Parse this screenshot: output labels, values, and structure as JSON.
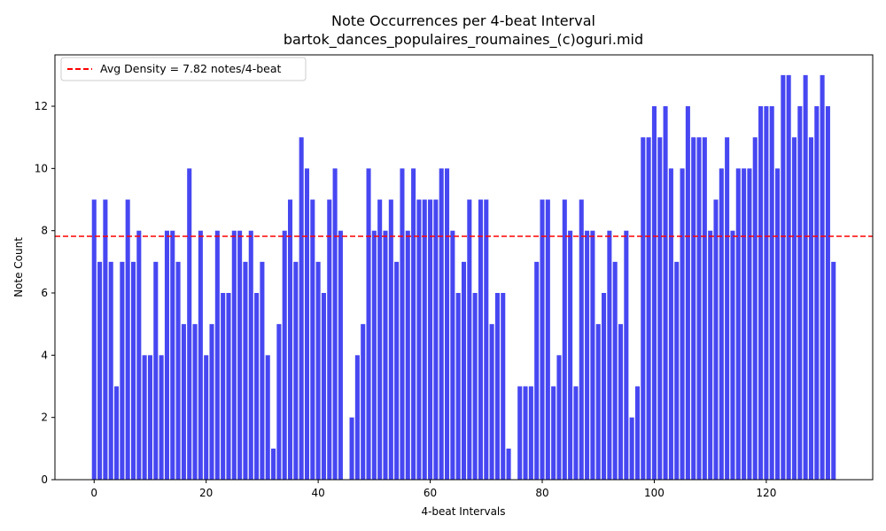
{
  "chart_data": {
    "type": "bar",
    "title": "Note Occurrences per 4-beat Interval",
    "subtitle": "bartok_dances_populaires_roumaines_(c)oguri.mid",
    "xlabel": "4-beat Intervals",
    "ylabel": "Note Count",
    "xlim": [
      -7,
      139
    ],
    "ylim": [
      0,
      13.65
    ],
    "xticks": [
      0,
      20,
      40,
      60,
      80,
      100,
      120
    ],
    "yticks": [
      0,
      2,
      4,
      6,
      8,
      10,
      12
    ],
    "grid": false,
    "bar_color": "#4747f2",
    "x": [
      0,
      1,
      2,
      3,
      4,
      5,
      6,
      7,
      8,
      9,
      10,
      11,
      12,
      13,
      14,
      15,
      16,
      17,
      18,
      19,
      20,
      21,
      22,
      23,
      24,
      25,
      26,
      27,
      28,
      29,
      30,
      31,
      32,
      33,
      34,
      35,
      36,
      37,
      38,
      39,
      40,
      41,
      42,
      43,
      44,
      45,
      46,
      47,
      48,
      49,
      50,
      51,
      52,
      53,
      54,
      55,
      56,
      57,
      58,
      59,
      60,
      61,
      62,
      63,
      64,
      65,
      66,
      67,
      68,
      69,
      70,
      71,
      72,
      73,
      74,
      75,
      76,
      77,
      78,
      79,
      80,
      81,
      82,
      83,
      84,
      85,
      86,
      87,
      88,
      89,
      90,
      91,
      92,
      93,
      94,
      95,
      96,
      97,
      98,
      99,
      100,
      101,
      102,
      103,
      104,
      105,
      106,
      107,
      108,
      109,
      110,
      111,
      112,
      113,
      114,
      115,
      116,
      117,
      118,
      119,
      120,
      121,
      122,
      123,
      124,
      125,
      126,
      127,
      128,
      129,
      130,
      131,
      132
    ],
    "values": [
      9,
      7,
      9,
      7,
      3,
      7,
      9,
      7,
      8,
      4,
      4,
      7,
      4,
      8,
      8,
      7,
      5,
      10,
      5,
      8,
      4,
      5,
      8,
      6,
      6,
      8,
      8,
      7,
      8,
      6,
      7,
      4,
      1,
      5,
      8,
      9,
      7,
      11,
      10,
      9,
      7,
      6,
      9,
      10,
      8,
      0,
      2,
      4,
      5,
      10,
      8,
      9,
      8,
      9,
      7,
      10,
      8,
      10,
      9,
      9,
      9,
      9,
      10,
      10,
      8,
      6,
      7,
      9,
      6,
      9,
      9,
      5,
      6,
      6,
      1,
      0,
      3,
      3,
      3,
      7,
      9,
      9,
      3,
      4,
      9,
      8,
      3,
      9,
      8,
      8,
      5,
      6,
      8,
      7,
      5,
      8,
      2,
      3,
      11,
      11,
      12,
      11,
      12,
      10,
      7,
      10,
      12,
      11,
      11,
      11,
      8,
      9,
      10,
      11,
      8,
      10,
      10,
      10,
      11,
      12,
      12,
      12,
      10,
      13,
      13,
      11,
      12,
      13,
      11,
      12,
      13,
      12,
      7
    ],
    "reference_line": {
      "value": 7.82,
      "label": "Avg Density = 7.82 notes/4-beat",
      "color": "#ff0000",
      "style": "dashed"
    },
    "legend_position": "top-left"
  }
}
